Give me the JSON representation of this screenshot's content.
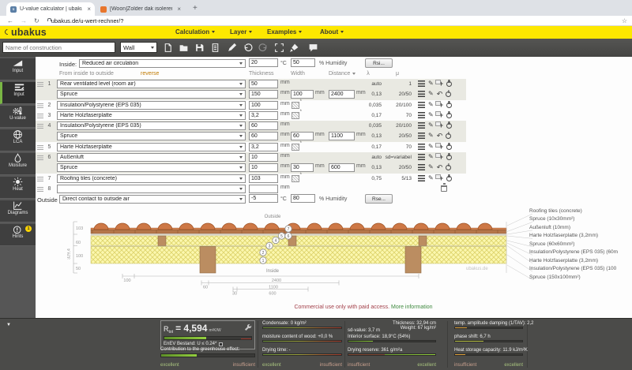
{
  "browser": {
    "tab1": "U-value calculator | ubakus.de",
    "tab1_fav": "u",
    "tab2": "[Woon]Zolder dak isoleren, best...",
    "url": "ubakus.de/u-wert-rechner/?"
  },
  "icons": {
    "close": "×",
    "newtab": "+",
    "back": "←",
    "forward": "→",
    "refresh": "↻",
    "star": "☆",
    "collapse": "▼",
    "pencil": "✎",
    "undo_return": "↶"
  },
  "header": {
    "logo": "ubakus",
    "menus": [
      {
        "label": "Calculation"
      },
      {
        "label": "Layer"
      },
      {
        "label": "Examples"
      },
      {
        "label": "About"
      }
    ]
  },
  "toolbar": {
    "name_placeholder": "Name of construction",
    "type_value": "Wall"
  },
  "sidebar": {
    "items": [
      {
        "label": "Input"
      },
      {
        "label": "Input"
      },
      {
        "label": "U-value"
      },
      {
        "label": "LCA"
      },
      {
        "label": "Moisture"
      },
      {
        "label": "Heat"
      },
      {
        "label": "Diagrams"
      },
      {
        "label": "Hints"
      }
    ],
    "hints_badge": "1"
  },
  "inside": {
    "label": "Inside:",
    "select": "Reduced air circulation",
    "temp": "20",
    "temp_unit": "°C",
    "humidity": "50",
    "humidity_label": "% Humidity",
    "button": "Rsi..."
  },
  "outside": {
    "label": "Outside",
    "select": "Direct contact to outside air",
    "temp": "-5",
    "temp_unit": "°C",
    "humidity": "80",
    "humidity_label": "% Humidity",
    "button": "Rse..."
  },
  "table": {
    "header": {
      "from": "From inside to outside",
      "reverse": "reverse",
      "thickness": "Thickness",
      "width": "Width",
      "distance": "Distance",
      "lambda": "λ",
      "mu": "μ"
    },
    "rows": [
      {
        "handle": true,
        "num": "1",
        "material": "Rear ventilated level (room air)",
        "thickness": "50",
        "unit": "mm",
        "lambda": "auto",
        "mu": "1",
        "shaded": true,
        "has_icons": true,
        "is_add": true
      },
      {
        "sub": true,
        "material": "Spruce",
        "thickness": "150",
        "unit": "mm",
        "width": "100",
        "distance": "2400",
        "has_wd": true,
        "lambda": "0,13",
        "mu": "20/50",
        "shaded": true,
        "has_icons": true,
        "is_return": true
      },
      {
        "handle": true,
        "num": "2",
        "material": "Insulation/Polystyrene (EPS 035)",
        "thickness": "100",
        "unit": "mm",
        "hatch": true,
        "lambda": "0,035",
        "mu": "20/100",
        "has_icons": true,
        "is_add": true
      },
      {
        "handle": true,
        "num": "3",
        "material": "Harte Holzfaserplatte",
        "thickness": "3,2",
        "unit": "mm",
        "hatch": true,
        "lambda": "0,17",
        "mu": "70",
        "has_icons": true,
        "is_add": true
      },
      {
        "handle": true,
        "num": "4",
        "material": "Insulation/Polystyrene (EPS 035)",
        "thickness": "60",
        "unit": "mm",
        "lambda": "0,035",
        "mu": "20/100",
        "shaded": true,
        "has_icons": true,
        "is_add": true
      },
      {
        "sub": true,
        "material": "Spruce",
        "thickness": "60",
        "unit": "mm",
        "width": "60",
        "distance": "1100",
        "has_wd": true,
        "lambda": "0,13",
        "mu": "20/50",
        "shaded": true,
        "has_icons": true,
        "is_return": true
      },
      {
        "handle": true,
        "num": "5",
        "material": "Harte Holzfaserplatte",
        "thickness": "3,2",
        "unit": "mm",
        "hatch": true,
        "lambda": "0,17",
        "mu": "70",
        "has_icons": true,
        "is_add": true
      },
      {
        "handle": true,
        "num": "6",
        "material": "Außenluft",
        "thickness": "10",
        "unit": "mm",
        "lambda": "auto",
        "mu": "sd=variabel",
        "shaded": true,
        "has_icons": true,
        "is_add": true
      },
      {
        "sub": true,
        "material": "Spruce",
        "thickness": "10",
        "unit": "mm",
        "width": "30",
        "distance": "600",
        "has_wd": true,
        "lambda": "0,13",
        "mu": "20/50",
        "shaded": true,
        "has_icons": true,
        "is_return": true
      },
      {
        "handle": true,
        "num": "7",
        "material": "Roofing tiles (concrete)",
        "thickness": "103",
        "unit": "mm",
        "hatch": true,
        "lambda": "0,75",
        "mu": "5/13",
        "has_icons": true,
        "is_add": true
      },
      {
        "handle": true,
        "num": "8",
        "material": "",
        "thickness": "",
        "unit": "mm",
        "is_trash": true
      }
    ]
  },
  "diagram": {
    "outside_label": "Outside",
    "inside_label": "Inside",
    "watermark": "ubakus.de",
    "dim_total": "329,4",
    "dims_left": [
      "103",
      "60",
      "100",
      "50"
    ],
    "dims_bottom": [
      "100",
      "2400",
      "60",
      "1100",
      "30",
      "600"
    ],
    "markers": [
      "1",
      "2",
      "3",
      "4",
      "5",
      "6",
      "7"
    ],
    "labels": [
      "Roofing tiles (concrete)",
      "Spruce (10x30mm²)",
      "Außenluft (10mm)",
      "Harte Holzfaserplatte (3,2mm)",
      "Spruce (60x60mm²)",
      "Insulation/Polystyrene (EPS 035) (60m",
      "Harte Holzfaserplatte (3,2mm)",
      "Insulation/Polystyrene (EPS 035) (100",
      "Spruce (150x100mm²)"
    ]
  },
  "notice": {
    "text": "Commercial use only with paid access.",
    "link": "More information"
  },
  "results": {
    "rtot_name": "R",
    "rtot_sub": "tot",
    "rtot_value": "= 4,594",
    "rtot_unit": "m²K/W",
    "enev": "EnEV Bestand: U ≤ 0.24*",
    "greenhouse": "Contribution to the greenhouse effect:",
    "condensate": "Condensate: 0 kg/m²",
    "moisture": "moisture content of wood: +0,0 %",
    "drying_time": "Drying time: -",
    "sd_value": "sd-value: 3,7 m",
    "thickness": "Thickness: 32,94 cm",
    "weight": "Weight: 67 kg/m²",
    "interior": "Interior surface: 18,9°C (54%)",
    "drying_reserve": "Drying reserve: 361 g/m²a",
    "tad": "temp. amplitude damping (1/TAV): 2,2",
    "phase": "phase shift: 6,7 h",
    "heat_capacity": "Heat storage capacity: 11.9 kJ/m²K",
    "excellent": "excellent",
    "insufficient": "insufficient"
  }
}
